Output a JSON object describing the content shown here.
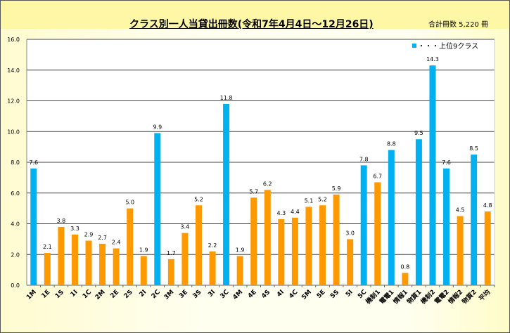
{
  "chart_data": {
    "type": "bar",
    "title": "クラス別一人当貸出冊数(令和7年4月4日～12月26日)",
    "annotation": "合計冊数 5,220 冊",
    "legend": {
      "label": "・・・上位9クラス",
      "color": "#00b0f0",
      "placement": "top-right"
    },
    "colors": {
      "top9": "#00b0f0",
      "other": "#ff9900"
    },
    "ylim": [
      0,
      16
    ],
    "yticks": [
      "0.0",
      "2.0",
      "4.0",
      "6.0",
      "8.0",
      "10.0",
      "12.0",
      "14.0",
      "16.0"
    ],
    "grid": true,
    "categories": [
      "1M",
      "1E",
      "1S",
      "1I",
      "1C",
      "2M",
      "2E",
      "2S",
      "2I",
      "2C",
      "3M",
      "3E",
      "3S",
      "3I",
      "3C",
      "4M",
      "4E",
      "4S",
      "4I",
      "4C",
      "5M",
      "5E",
      "5S",
      "5I",
      "5C",
      "機制1",
      "電電1",
      "情報1",
      "物質1",
      "機制2",
      "電電2",
      "情報2",
      "物質2",
      "平均"
    ],
    "values": [
      7.6,
      2.1,
      3.8,
      3.3,
      2.9,
      2.7,
      2.4,
      5.0,
      1.9,
      9.9,
      1.7,
      3.4,
      5.2,
      2.2,
      11.8,
      1.9,
      5.7,
      6.2,
      4.3,
      4.4,
      5.1,
      5.2,
      5.9,
      3.0,
      7.8,
      6.7,
      8.8,
      0.8,
      9.5,
      14.3,
      7.6,
      4.5,
      8.5,
      4.8
    ],
    "top9": [
      true,
      false,
      false,
      false,
      false,
      false,
      false,
      false,
      false,
      true,
      false,
      false,
      false,
      false,
      true,
      false,
      false,
      false,
      false,
      false,
      false,
      false,
      false,
      false,
      true,
      false,
      true,
      false,
      true,
      true,
      true,
      false,
      true,
      false
    ]
  }
}
